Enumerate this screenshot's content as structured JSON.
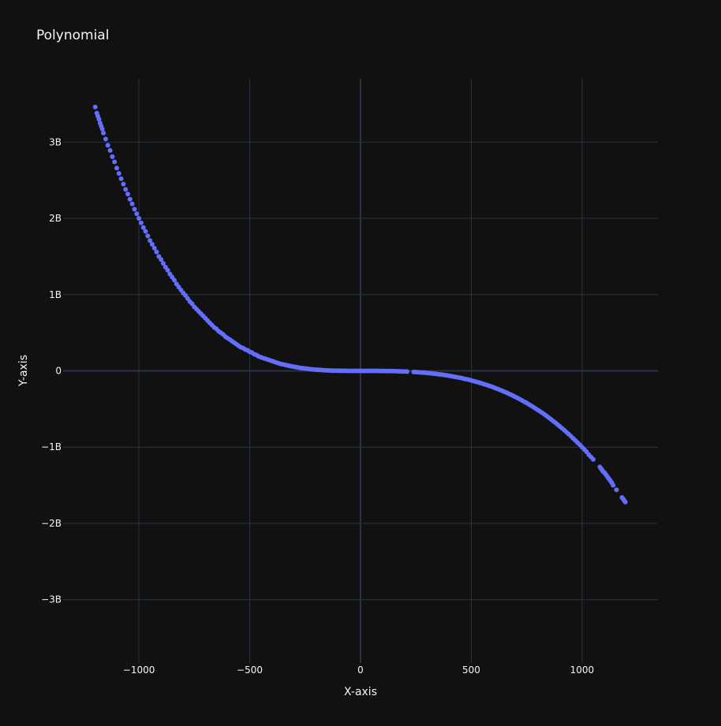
{
  "colors": {
    "background": "#111111",
    "grid": "#283442",
    "zeroline": "#283442",
    "marker": "#636efa",
    "text": "#f2f5fa"
  },
  "chart_data": {
    "type": "scatter",
    "title": "Polynomial",
    "xlabel": "X-axis",
    "ylabel": "Y-axis",
    "xlim": [
      -1342,
      1342
    ],
    "ylim": [
      -3830000000.0,
      3830000000.0
    ],
    "grid": true,
    "legend": "none",
    "x_ticks": [
      {
        "value": -1000,
        "label": "−1000"
      },
      {
        "value": -500,
        "label": "−500"
      },
      {
        "value": 0,
        "label": "0"
      },
      {
        "value": 500,
        "label": "500"
      },
      {
        "value": 1000,
        "label": "1000"
      }
    ],
    "y_ticks": [
      {
        "value": 3000000000,
        "label": "3B"
      },
      {
        "value": 2000000000,
        "label": "2B"
      },
      {
        "value": 1000000000,
        "label": "1B"
      },
      {
        "value": 0,
        "label": "0"
      },
      {
        "value": -1000000000,
        "label": "−1B"
      },
      {
        "value": -2000000000,
        "label": "−2B"
      },
      {
        "value": -3000000000,
        "label": "−3B"
      }
    ],
    "series": [
      {
        "marker_color": "#636efa",
        "x": [
          -1197,
          -1190,
          -1185,
          -1180,
          -1175,
          -1170,
          -1165,
          -1160,
          -1150,
          -1140,
          -1130,
          -1120,
          -1110,
          -1100,
          -1090,
          -1080,
          -1070,
          -1060,
          -1050,
          -1040,
          -1030,
          -1020,
          -1010,
          -1000,
          -990,
          -980,
          -970,
          -960,
          -950,
          -940,
          -930,
          -920,
          -910,
          -900,
          -890,
          -880,
          -870,
          -860,
          -850,
          -840,
          -830,
          -820,
          -810,
          -800,
          -790,
          -780,
          -770,
          -760,
          -750,
          -740,
          -730,
          -720,
          -710,
          -700,
          -690,
          -680,
          -670,
          -660,
          -650,
          -640,
          -630,
          -620,
          -610,
          -600,
          -590,
          -580,
          -570,
          -560,
          -550,
          -540,
          -530,
          -520,
          -510,
          -500,
          -490,
          -480,
          -470,
          -460,
          -450,
          -440,
          -430,
          -420,
          -410,
          -400,
          -390,
          -380,
          -370,
          -360,
          -350,
          -340,
          -330,
          -320,
          -310,
          -300,
          -290,
          -280,
          -270,
          -260,
          -250,
          -240,
          -230,
          -220,
          -210,
          -200,
          -190,
          -180,
          -170,
          -160,
          -150,
          -140,
          -130,
          -120,
          -110,
          -100,
          -90,
          -80,
          -70,
          -60,
          -50,
          -40,
          -30,
          -20,
          -10,
          0,
          10,
          20,
          30,
          40,
          50,
          60,
          70,
          80,
          90,
          100,
          110,
          120,
          130,
          140,
          150,
          160,
          170,
          180,
          190,
          200,
          210,
          240,
          250,
          260,
          270,
          280,
          290,
          300,
          310,
          320,
          330,
          340,
          350,
          360,
          370,
          380,
          390,
          400,
          410,
          420,
          430,
          440,
          450,
          460,
          470,
          480,
          490,
          500,
          510,
          520,
          530,
          540,
          550,
          560,
          570,
          580,
          590,
          600,
          610,
          620,
          630,
          640,
          650,
          660,
          670,
          680,
          690,
          700,
          710,
          720,
          730,
          740,
          750,
          760,
          770,
          780,
          790,
          800,
          810,
          820,
          830,
          840,
          850,
          860,
          870,
          880,
          890,
          900,
          910,
          920,
          930,
          940,
          950,
          960,
          970,
          980,
          990,
          1000,
          1010,
          1020,
          1030,
          1040,
          1050,
          1080,
          1085,
          1090,
          1095,
          1100,
          1105,
          1110,
          1115,
          1120,
          1125,
          1130,
          1135,
          1140,
          1155,
          1180,
          1185,
          1190,
          1195
        ],
        "y": [
          3460000000.0,
          3380000000.0,
          3340000000.0,
          3300000000.0,
          3250000000.0,
          3210000000.0,
          3170000000.0,
          3120000000.0,
          3040000000.0,
          2960000000.0,
          2890000000.0,
          2810000000.0,
          2740000000.0,
          2660000000.0,
          2590000000.0,
          2520000000.0,
          2450000000.0,
          2380000000.0,
          2320000000.0,
          2250000000.0,
          2190000000.0,
          2120000000.0,
          2060000000.0,
          2000000000.0,
          1940000000.0,
          1880000000.0,
          1830000000.0,
          1770000000.0,
          1710000000.0,
          1660000000.0,
          1610000000.0,
          1560000000.0,
          1500000000.0,
          1460000000.0,
          1410000000.0,
          1360000000.0,
          1320000000.0,
          1270000000.0,
          1230000000.0,
          1190000000.0,
          1140000000.0,
          1100000000.0,
          1060000000.0,
          1020000000.0,
          990000000.0,
          950000000.0,
          910000000.0,
          880000000.0,
          840000000.0,
          810000000.0,
          780000000.0,
          750000000.0,
          720000000.0,
          690000000.0,
          660000000.0,
          630000000.0,
          600000000.0,
          570000000.0,
          550000000.0,
          520000000.0,
          500000000.0,
          480000000.0,
          450000000.0,
          430000000.0,
          410000000.0,
          390000000.0,
          370000000.0,
          350000000.0,
          330000000.0,
          310000000.0,
          300000000.0,
          280000000.0,
          270000000.0,
          250000000.0,
          240000000.0,
          220000000.0,
          210000000.0,
          190000000.0,
          180000000.0,
          170000000.0,
          160000000.0,
          150000000.0,
          140000000.0,
          130000000.0,
          120000000.0,
          110000000.0,
          100000000.0,
          90000000.0,
          86000000.0,
          79000000.0,
          72000000.0,
          66000000.0,
          60000000.0,
          54000000.0,
          49000000.0,
          44000000.0,
          39000000.0,
          35000000.0,
          31000000.0,
          28000000.0,
          24000000.0,
          21000000.0,
          19000000.0,
          16000000.0,
          14000000.0,
          12000000.0,
          9800000.0,
          8200000.0,
          6700000.0,
          5400000.0,
          4300000.0,
          3300000.0,
          2500000.0,
          1800000.0,
          1300000.0,
          860000.0,
          540000.0,
          310000.0,
          160000.0,
          64000.0,
          19000.0,
          2400.0,
          1000.0,
          0,
          -2000.0,
          -8000.0,
          -27000.0,
          -64000.0,
          -130000.0,
          -220000.0,
          -340000.0,
          -510000.0,
          -730000.0,
          -1000000.0,
          -1300000.0,
          -1700000.0,
          -2200000.0,
          -2700000.0,
          -3400000.0,
          -4100000.0,
          -4900000.0,
          -5800000.0,
          -6900000.0,
          -8000000.0,
          -9300000.0,
          -14000000.0,
          -16000000.0,
          -18000000.0,
          -20000000.0,
          -22000000.0,
          -24000000.0,
          -27000000.0,
          -30000000.0,
          -33000000.0,
          -36000000.0,
          -39000000.0,
          -43000000.0,
          -47000000.0,
          -51000000.0,
          -55000000.0,
          -59000000.0,
          -64000000.0,
          -69000000.0,
          -74000000.0,
          -80000000.0,
          -85000000.0,
          -91000000.0,
          -97000000.0,
          -104000000.0,
          -110000000.0,
          -118000000.0,
          -125000000.0,
          -133000000.0,
          -141000000.0,
          -149000000.0,
          -157000000.0,
          -166000000.0,
          -176000000.0,
          -185000000.0,
          -195000000.0,
          -205000000.0,
          -216000000.0,
          -227000000.0,
          -238000000.0,
          -250000000.0,
          -262000000.0,
          -275000000.0,
          -287000000.0,
          -301000000.0,
          -314000000.0,
          -329000000.0,
          -343000000.0,
          -358000000.0,
          -373000000.0,
          -389000000.0,
          -405000000.0,
          -422000000.0,
          -439000000.0,
          -456000000.0,
          -474000000.0,
          -493000000.0,
          -512000000.0,
          -531000000.0,
          -551000000.0,
          -571000000.0,
          -592000000.0,
          -614000000.0,
          -636000000.0,
          -658000000.0,
          -681000000.0,
          -705000000.0,
          -729000000.0,
          -754000000.0,
          -779000000.0,
          -805000000.0,
          -831000000.0,
          -858000000.0,
          -886000000.0,
          -914000000.0,
          -942000000.0,
          -971000000.0,
          -1000000000.0,
          -1030000000.0,
          -1060000000.0,
          -1100000000.0,
          -1130000000.0,
          -1160000000.0,
          -1260000000.0,
          -1280000000.0,
          -1300000000.0,
          -1320000000.0,
          -1330000000.0,
          -1350000000.0,
          -1370000000.0,
          -1390000000.0,
          -1410000000.0,
          -1430000000.0,
          -1450000000.0,
          -1470000000.0,
          -1500000000.0,
          -1560000000.0,
          -1660000000.0,
          -1680000000.0,
          -1700000000.0,
          -1720000000.0
        ]
      }
    ]
  }
}
